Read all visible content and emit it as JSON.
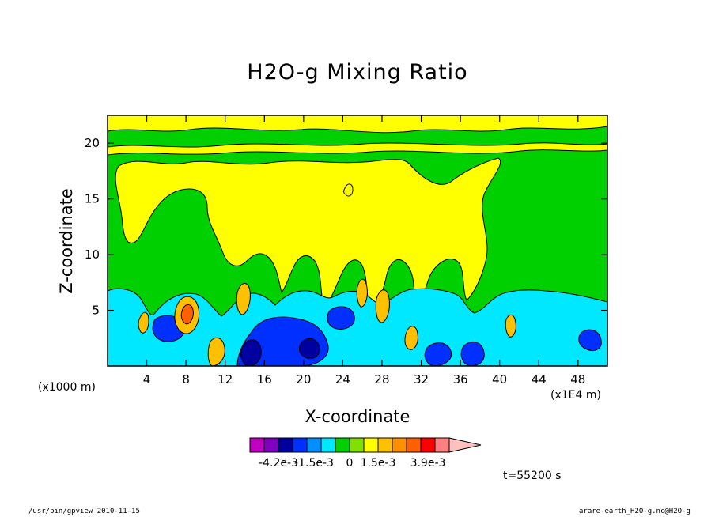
{
  "chart_data": {
    "type": "heatmap",
    "title": "H2O-g Mixing Ratio",
    "xlabel": "X-coordinate",
    "ylabel": "Z-coordinate",
    "x_units_left": "(x1000 m)",
    "x_units_right": "(x1E4 m)",
    "x_ticks": [
      "4",
      "8",
      "12",
      "16",
      "20",
      "24",
      "28",
      "32",
      "36",
      "40",
      "44",
      "48"
    ],
    "y_ticks": [
      "5",
      "10",
      "15",
      "20"
    ],
    "xlim": [
      0,
      51
    ],
    "ylim": [
      0,
      22.5
    ],
    "colorbar": {
      "labels": [
        "-4.2e-3",
        "-1.5e-3",
        "0",
        "1.5e-3",
        "3.9e-3"
      ],
      "colors": [
        "#c000c0",
        "#8000c0",
        "#0000a0",
        "#0030ff",
        "#0090ff",
        "#00e8ff",
        "#00d000",
        "#80e000",
        "#ffff00",
        "#ffc000",
        "#ff9000",
        "#ff6000",
        "#ff0000",
        "#ff8080",
        "#ffc0c0"
      ]
    },
    "time_label": "t=55200 s"
  },
  "footer": {
    "left": "/usr/bin/gpview  2010-11-15",
    "right": "arare-earth_H2O-g.nc@H2O-g"
  }
}
